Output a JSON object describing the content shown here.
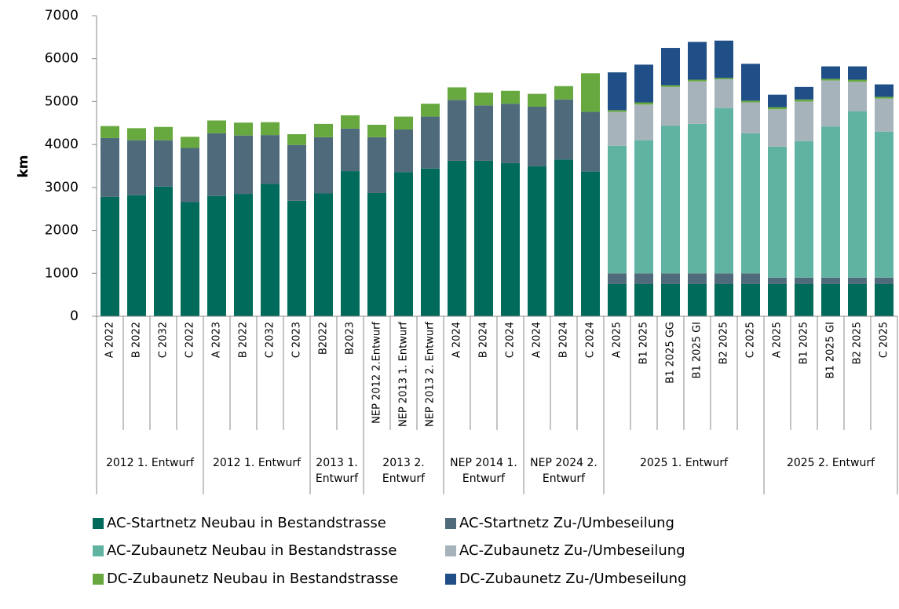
{
  "chart_data": {
    "type": "stacked_bar",
    "ylabel": "km",
    "ylim": [
      0,
      7000
    ],
    "yticks": [
      0,
      1000,
      2000,
      3000,
      4000,
      5000,
      6000,
      7000
    ],
    "grid": false,
    "legend": "bottom",
    "categories": [
      "A 2022",
      "B 2022",
      "C 2032",
      "C 2022",
      "A 2023",
      "B 2022",
      "C 2032",
      "C 2023",
      "B2022",
      "B2023",
      "NEP 2012 2.Entwurf",
      "NEP 2013 1. Entwurf",
      "NEP 2013 2. Entwurf",
      "A 2024",
      "B 2024",
      "C 2024",
      "A 2024",
      "B 2024",
      "C 2024",
      "A 2025",
      "B1 2025",
      "B1 2025 GG",
      "B1 2025 GI",
      "B2 2025",
      "C 2025",
      "A 2025",
      "B1 2025",
      "B1 2025 GI",
      "B2 2025",
      "C 2025"
    ],
    "groups": [
      {
        "label": "2012 1. Entwurf",
        "span": 4
      },
      {
        "label": "2012 1. Entwurf",
        "span": 4
      },
      {
        "label": "2013 1. Entwurf",
        "span": 2
      },
      {
        "label": "2013 2. Entwurf",
        "span": 3
      },
      {
        "label": "NEP 2014 1. Entwurf",
        "span": 3
      },
      {
        "label": "NEP 2024 2. Entwurf",
        "span": 3
      },
      {
        "label": "2025 1. Entwurf",
        "span": 6
      },
      {
        "label": "2025 2. Entwurf",
        "span": 5
      }
    ],
    "series": [
      {
        "name": "AC-Startnetz Neubau in Bestandstrasse",
        "color": "#006a5b",
        "values": [
          2780,
          2820,
          3020,
          2660,
          2800,
          2850,
          3080,
          2690,
          2860,
          3380,
          2870,
          3360,
          3440,
          3620,
          3620,
          3570,
          3490,
          3650,
          3370,
          750,
          750,
          750,
          750,
          750,
          750,
          750,
          750,
          750,
          750,
          750
        ]
      },
      {
        "name": "AC-Startnetz Zu-/Umbeseilung",
        "color": "#4f6b7b",
        "values": [
          1370,
          1280,
          1080,
          1260,
          1460,
          1360,
          1140,
          1300,
          1310,
          990,
          1300,
          990,
          1210,
          1420,
          1290,
          1380,
          1390,
          1400,
          1390,
          250,
          250,
          250,
          250,
          250,
          250,
          150,
          150,
          150,
          150,
          150
        ]
      },
      {
        "name": "AC-Zubaunetz Neubau in Bestandstrasse",
        "color": "#5fb3a0",
        "values": [
          0,
          0,
          0,
          0,
          0,
          0,
          0,
          0,
          0,
          0,
          0,
          0,
          0,
          0,
          0,
          0,
          0,
          0,
          0,
          2970,
          3100,
          3440,
          3480,
          3850,
          3260,
          3050,
          3180,
          3520,
          3870,
          3400
        ]
      },
      {
        "name": "AC-Zubaunetz Zu-/Umbeseilung",
        "color": "#a7b3bb",
        "values": [
          0,
          0,
          0,
          0,
          0,
          0,
          0,
          0,
          0,
          0,
          0,
          0,
          0,
          0,
          0,
          0,
          0,
          0,
          0,
          790,
          830,
          900,
          990,
          670,
          720,
          870,
          920,
          1070,
          690,
          770
        ]
      },
      {
        "name": "DC-Zubaunetz Neubau in Bestandstrasse",
        "color": "#68a93f",
        "values": [
          280,
          280,
          310,
          260,
          300,
          300,
          300,
          250,
          310,
          310,
          290,
          300,
          300,
          290,
          300,
          300,
          300,
          310,
          900,
          40,
          50,
          40,
          40,
          30,
          40,
          50,
          50,
          40,
          50,
          40
        ]
      },
      {
        "name": "DC-Zubaunetz Zu-/Umbeseilung",
        "color": "#1f4f86",
        "values": [
          0,
          0,
          0,
          0,
          0,
          0,
          0,
          0,
          0,
          0,
          0,
          0,
          0,
          0,
          0,
          0,
          0,
          0,
          0,
          880,
          880,
          870,
          880,
          870,
          860,
          290,
          290,
          290,
          310,
          290
        ]
      }
    ]
  }
}
